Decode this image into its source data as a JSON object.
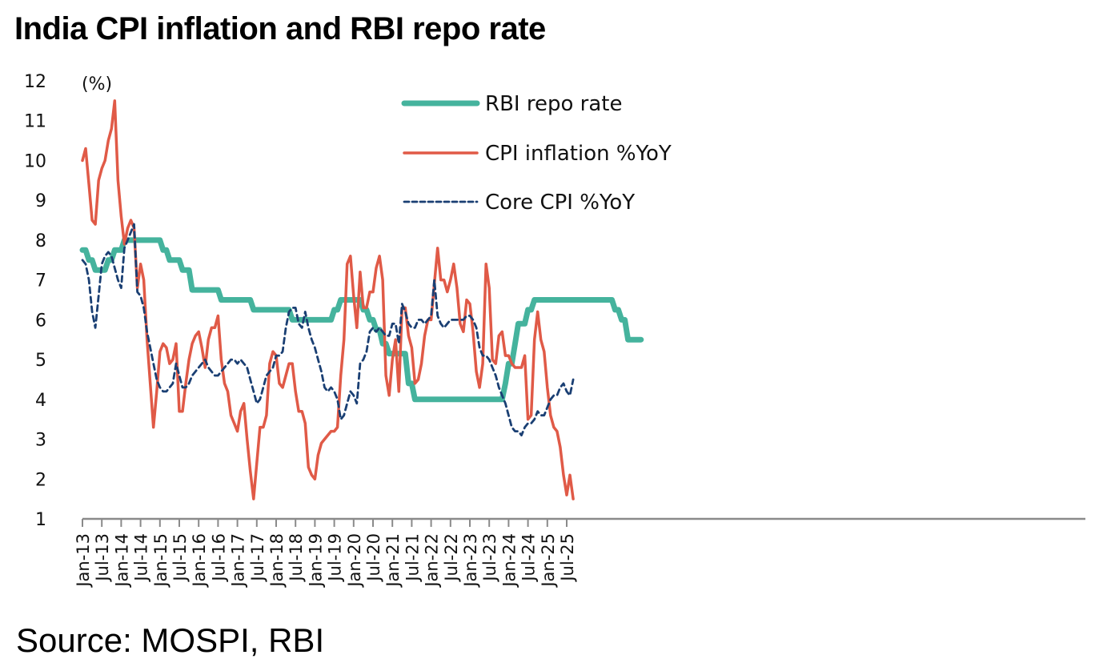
{
  "title": "India CPI inflation and RBI repo rate",
  "source": "Source: MOSPI, RBI",
  "chart_data": {
    "type": "line",
    "title": "India CPI inflation and RBI repo rate",
    "xlabel": "",
    "ylabel": "(%)",
    "ylim": [
      1,
      12
    ],
    "yticks": [
      1,
      2,
      3,
      4,
      5,
      6,
      7,
      8,
      9,
      10,
      11,
      12
    ],
    "grid": false,
    "legend_position": "top-center",
    "x_start": "Jan-13",
    "x_frequency": "monthly",
    "xtick_labels": [
      "Jan-13",
      "Jul-13",
      "Jan-14",
      "Jul-14",
      "Jan-15",
      "Jul-15",
      "Jan-16",
      "Jul-16",
      "Jan-17",
      "Jul-17",
      "Jan-18",
      "Jul-18",
      "Jan-19",
      "Jul-19",
      "Jan-20",
      "Jul-20",
      "Jan-21",
      "Jul-21",
      "Jan-22",
      "Jul-22",
      "Jan-23",
      "Jul-23",
      "Jan-24",
      "Jul-24",
      "Jan-25",
      "Jul-25"
    ],
    "xtick_every_months": 6,
    "series": [
      {
        "name": "RBI repo rate",
        "color": "#45b39d",
        "style": "solid-thick",
        "values": [
          7.75,
          7.75,
          7.5,
          7.5,
          7.25,
          7.25,
          7.25,
          7.25,
          7.5,
          7.5,
          7.75,
          7.75,
          7.75,
          8.0,
          8.0,
          8.0,
          8.0,
          8.0,
          8.0,
          8.0,
          8.0,
          8.0,
          8.0,
          8.0,
          8.0,
          7.75,
          7.75,
          7.5,
          7.5,
          7.5,
          7.5,
          7.25,
          7.25,
          7.25,
          6.75,
          6.75,
          6.75,
          6.75,
          6.75,
          6.75,
          6.75,
          6.75,
          6.75,
          6.5,
          6.5,
          6.5,
          6.5,
          6.5,
          6.5,
          6.5,
          6.5,
          6.5,
          6.5,
          6.25,
          6.25,
          6.25,
          6.25,
          6.25,
          6.25,
          6.25,
          6.25,
          6.25,
          6.25,
          6.25,
          6.25,
          6.0,
          6.0,
          6.0,
          6.0,
          6.0,
          6.0,
          6.0,
          6.0,
          6.0,
          6.0,
          6.0,
          6.0,
          6.0,
          6.25,
          6.25,
          6.5,
          6.5,
          6.5,
          6.5,
          6.5,
          6.5,
          6.5,
          6.25,
          6.25,
          6.0,
          6.0,
          5.75,
          5.75,
          5.4,
          5.4,
          5.15,
          5.15,
          5.15,
          5.15,
          5.15,
          5.15,
          4.4,
          4.4,
          4.0,
          4.0,
          4.0,
          4.0,
          4.0,
          4.0,
          4.0,
          4.0,
          4.0,
          4.0,
          4.0,
          4.0,
          4.0,
          4.0,
          4.0,
          4.0,
          4.0,
          4.0,
          4.0,
          4.0,
          4.0,
          4.0,
          4.0,
          4.0,
          4.0,
          4.0,
          4.0,
          4.0,
          4.4,
          4.9,
          4.9,
          5.4,
          5.9,
          5.9,
          5.9,
          6.25,
          6.25,
          6.5,
          6.5,
          6.5,
          6.5,
          6.5,
          6.5,
          6.5,
          6.5,
          6.5,
          6.5,
          6.5,
          6.5,
          6.5,
          6.5,
          6.5,
          6.5,
          6.5,
          6.5,
          6.5,
          6.5,
          6.5,
          6.5,
          6.5,
          6.5,
          6.5,
          6.25,
          6.25,
          6.0,
          6.0,
          5.5,
          5.5,
          5.5,
          5.5,
          5.5
        ]
      },
      {
        "name": "CPI inflation %YoY",
        "color": "#e05a47",
        "style": "solid",
        "values": [
          10.0,
          10.3,
          9.4,
          8.5,
          8.4,
          9.5,
          9.8,
          10.0,
          10.5,
          10.8,
          11.5,
          9.5,
          8.6,
          7.9,
          8.3,
          8.5,
          8.3,
          6.8,
          7.4,
          7.0,
          5.5,
          4.4,
          3.3,
          4.2,
          5.2,
          5.4,
          5.3,
          4.9,
          5.0,
          5.4,
          3.7,
          3.7,
          4.4,
          5.0,
          5.4,
          5.6,
          5.7,
          5.3,
          4.8,
          5.5,
          5.8,
          5.8,
          6.1,
          5.0,
          4.4,
          4.2,
          3.6,
          3.4,
          3.2,
          3.7,
          3.9,
          3.0,
          2.2,
          1.5,
          2.4,
          3.3,
          3.3,
          3.6,
          4.9,
          5.2,
          5.1,
          4.4,
          4.3,
          4.6,
          4.9,
          4.9,
          4.2,
          3.7,
          3.7,
          3.4,
          2.3,
          2.1,
          2.0,
          2.6,
          2.9,
          3.0,
          3.1,
          3.2,
          3.2,
          3.3,
          4.6,
          5.5,
          7.4,
          7.6,
          6.6,
          5.8,
          7.2,
          6.3,
          6.3,
          6.7,
          6.7,
          7.3,
          7.6,
          7.0,
          4.6,
          4.1,
          5.0,
          5.5,
          4.2,
          6.3,
          6.3,
          5.6,
          5.3,
          4.4,
          4.5,
          4.9,
          5.6,
          6.0,
          6.0,
          6.9,
          7.8,
          7.0,
          7.0,
          6.7,
          7.0,
          7.4,
          6.8,
          5.9,
          5.7,
          6.5,
          6.4,
          5.7,
          4.7,
          4.3,
          4.9,
          7.4,
          6.8,
          5.0,
          4.9,
          5.6,
          5.7,
          5.1,
          5.1,
          4.9,
          4.8,
          4.8,
          4.8,
          5.1,
          3.5,
          3.6,
          5.5,
          6.2,
          5.5,
          5.2,
          4.3,
          3.6,
          3.3,
          3.2,
          2.8,
          2.1,
          1.6,
          2.1,
          1.5
        ]
      },
      {
        "name": "Core CPI %YoY",
        "color": "#1a3f73",
        "style": "dashed",
        "values": [
          7.5,
          7.4,
          7.0,
          6.2,
          5.8,
          6.6,
          7.4,
          7.6,
          7.7,
          7.6,
          7.3,
          7.0,
          6.8,
          7.8,
          8.0,
          8.2,
          8.4,
          6.7,
          6.6,
          6.3,
          5.7,
          5.3,
          4.9,
          4.5,
          4.3,
          4.2,
          4.2,
          4.3,
          4.4,
          4.9,
          4.6,
          4.3,
          4.3,
          4.4,
          4.6,
          4.7,
          4.8,
          4.9,
          5.0,
          4.8,
          4.7,
          4.6,
          4.6,
          4.7,
          4.8,
          4.9,
          5.0,
          5.0,
          4.9,
          5.0,
          4.9,
          4.8,
          4.5,
          4.2,
          3.9,
          4.0,
          4.3,
          4.6,
          4.7,
          4.8,
          5.1,
          5.1,
          5.2,
          5.8,
          6.2,
          6.3,
          6.3,
          5.9,
          5.8,
          6.2,
          5.8,
          5.5,
          5.3,
          5.0,
          4.7,
          4.3,
          4.2,
          4.3,
          4.2,
          4.0,
          3.5,
          3.6,
          3.9,
          4.2,
          4.1,
          3.9,
          4.9,
          5.0,
          5.2,
          5.7,
          5.8,
          5.7,
          5.8,
          5.7,
          5.6,
          5.6,
          5.9,
          5.9,
          5.4,
          6.4,
          6.2,
          5.9,
          5.8,
          5.8,
          6.0,
          6.0,
          5.9,
          6.0,
          6.1,
          7.0,
          6.1,
          5.9,
          5.8,
          5.9,
          6.0,
          6.0,
          6.0,
          6.0,
          6.0,
          6.1,
          6.1,
          6.0,
          5.8,
          5.3,
          5.1,
          5.1,
          5.0,
          4.8,
          4.6,
          4.3,
          4.1,
          3.9,
          3.6,
          3.3,
          3.2,
          3.2,
          3.1,
          3.3,
          3.4,
          3.4,
          3.5,
          3.7,
          3.6,
          3.6,
          3.8,
          4.0,
          4.1,
          4.1,
          4.3,
          4.4,
          4.2,
          4.1,
          4.5
        ]
      }
    ]
  }
}
